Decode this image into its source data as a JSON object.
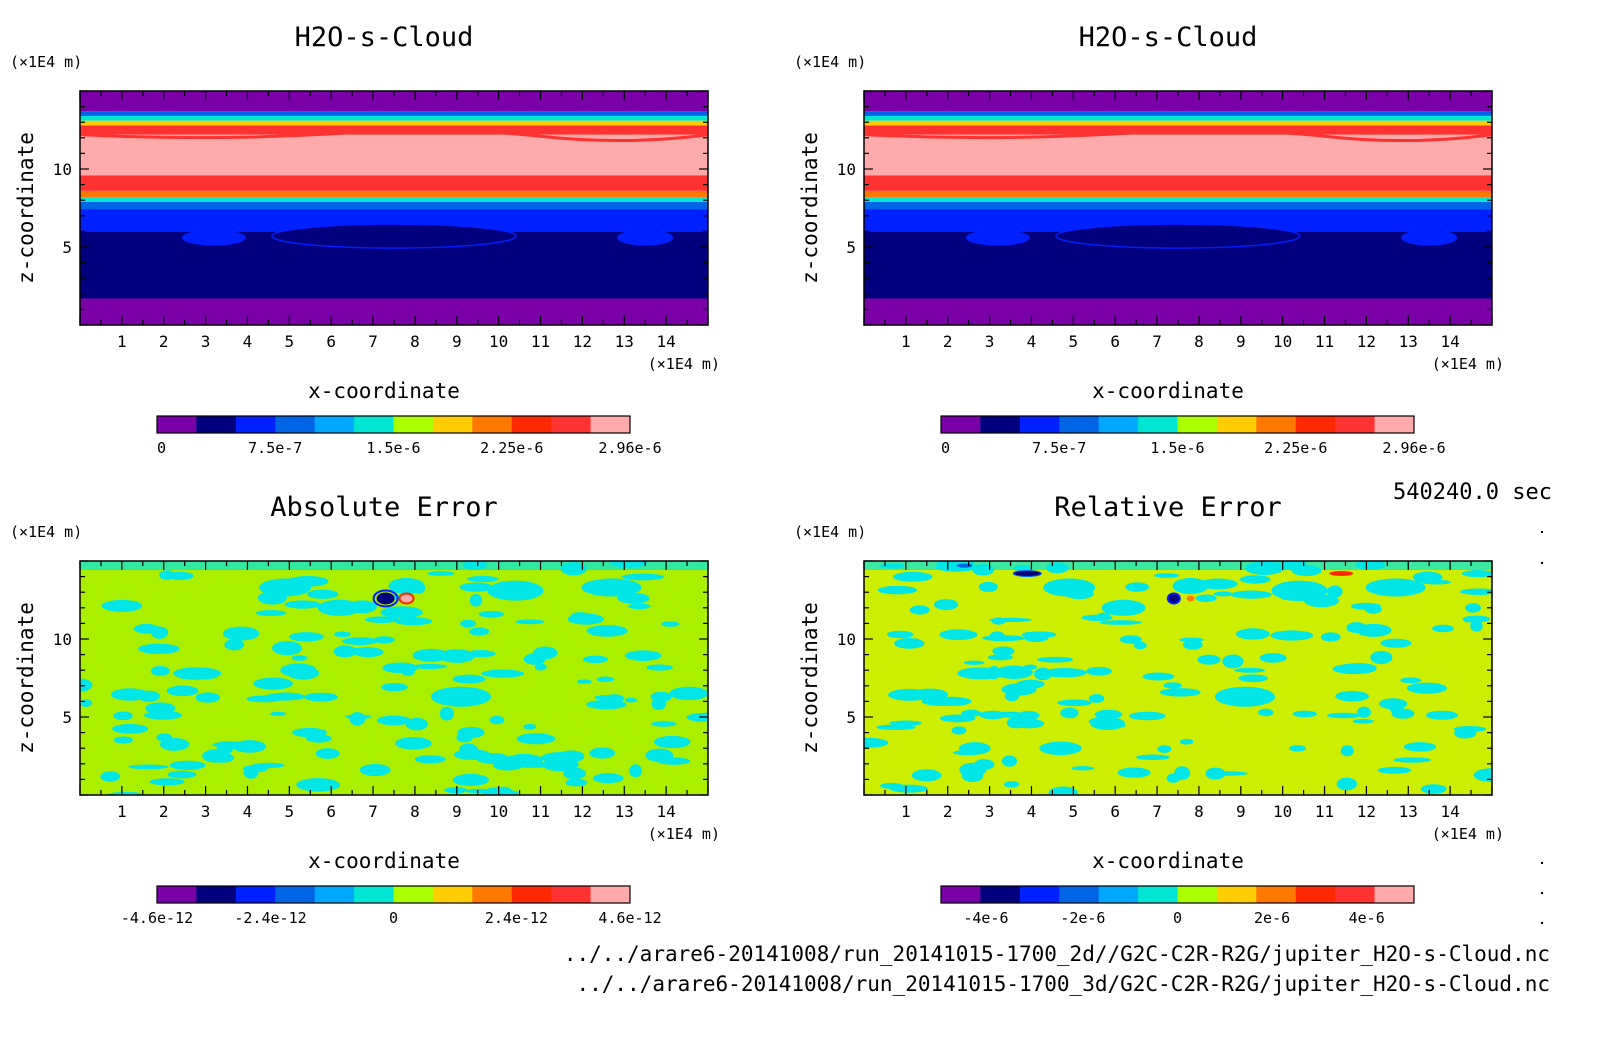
{
  "timestamp": "540240.0 sec",
  "files": [
    "../../arare6-20141008/run_20141015-1700_2d//G2C-C2R-R2G/jupiter_H2O-s-Cloud.nc",
    "../../arare6-20141008/run_20141015-1700_3d/G2C-C2R-R2G/jupiter_H2O-s-Cloud.nc"
  ],
  "palette": [
    "#7a00a8",
    "#00007f",
    "#0020ff",
    "#0064e6",
    "#00a8ff",
    "#00e6d2",
    "#aaff00",
    "#ffcc00",
    "#ff7800",
    "#ff2800",
    "#ff3232",
    "#ffaaaa"
  ],
  "chart_data": [
    {
      "type": "heatmap",
      "title": "H2O-s-Cloud",
      "xlabel": "x-coordinate",
      "ylabel": "z-coordinate",
      "x_unit": "(×1E4 m)",
      "y_unit": "(×1E4 m)",
      "xlim": [
        0,
        15
      ],
      "ylim": [
        0,
        15
      ],
      "xticks": [
        "1",
        "2",
        "3",
        "4",
        "5",
        "6",
        "7",
        "8",
        "9",
        "10",
        "11",
        "12",
        "13",
        "14"
      ],
      "yticks": [
        "5",
        "10"
      ],
      "colorbar_labels": [
        "0",
        "7.5e-7",
        "1.5e-6",
        "2.25e-6",
        "2.96e-6"
      ],
      "colorbar_range": [
        0,
        2.96e-06
      ],
      "layers_z_bottom_to_top": [
        {
          "z0": 0,
          "z1": 1.7,
          "color_index": 0
        },
        {
          "z0": 1.7,
          "z1": 6.0,
          "color_index": 1
        },
        {
          "z0": 6.0,
          "z1": 7.4,
          "color_index": 2
        },
        {
          "z0": 7.4,
          "z1": 7.9,
          "color_index": 3
        },
        {
          "z0": 7.9,
          "z1": 8.2,
          "color_index": 5
        },
        {
          "z0": 8.2,
          "z1": 8.6,
          "color_index": 8
        },
        {
          "z0": 8.6,
          "z1": 9.6,
          "color_index": 10
        },
        {
          "z0": 9.6,
          "z1": 12.2,
          "color_index": 11
        },
        {
          "z0": 12.2,
          "z1": 12.8,
          "color_index": 10
        },
        {
          "z0": 12.8,
          "z1": 13.1,
          "color_index": 7
        },
        {
          "z0": 13.1,
          "z1": 13.4,
          "color_index": 5
        },
        {
          "z0": 13.4,
          "z1": 13.7,
          "color_index": 3
        },
        {
          "z0": 13.7,
          "z1": 15,
          "color_index": 0
        }
      ]
    },
    {
      "type": "heatmap",
      "title": "H2O-s-Cloud",
      "xlabel": "x-coordinate",
      "ylabel": "z-coordinate",
      "x_unit": "(×1E4 m)",
      "y_unit": "(×1E4 m)",
      "xlim": [
        0,
        15
      ],
      "ylim": [
        0,
        15
      ],
      "xticks": [
        "1",
        "2",
        "3",
        "4",
        "5",
        "6",
        "7",
        "8",
        "9",
        "10",
        "11",
        "12",
        "13",
        "14"
      ],
      "yticks": [
        "5",
        "10"
      ],
      "colorbar_labels": [
        "0",
        "7.5e-7",
        "1.5e-6",
        "2.25e-6",
        "2.96e-6"
      ],
      "colorbar_range": [
        0,
        2.96e-06
      ],
      "layers_z_bottom_to_top": "same as panel 1"
    },
    {
      "type": "heatmap",
      "title": "Absolute Error",
      "xlabel": "x-coordinate",
      "ylabel": "z-coordinate",
      "x_unit": "(×1E4 m)",
      "y_unit": "(×1E4 m)",
      "xlim": [
        0,
        15
      ],
      "ylim": [
        0,
        15
      ],
      "xticks": [
        "1",
        "2",
        "3",
        "4",
        "5",
        "6",
        "7",
        "8",
        "9",
        "10",
        "11",
        "12",
        "13",
        "14"
      ],
      "yticks": [
        "5",
        "10"
      ],
      "colorbar_labels": [
        "-4.6e-12",
        "-2.4e-12",
        "0",
        "2.4e-12",
        "4.6e-12"
      ],
      "colorbar_range": [
        -4.6e-12,
        4.6e-12
      ],
      "background_color": "#aaee00",
      "blob_color": "#00e6e6"
    },
    {
      "type": "heatmap",
      "title": "Relative Error",
      "xlabel": "x-coordinate",
      "ylabel": "z-coordinate",
      "x_unit": "(×1E4 m)",
      "y_unit": "(×1E4 m)",
      "xlim": [
        0,
        15
      ],
      "ylim": [
        0,
        15
      ],
      "xticks": [
        "1",
        "2",
        "3",
        "4",
        "5",
        "6",
        "7",
        "8",
        "9",
        "10",
        "11",
        "12",
        "13",
        "14"
      ],
      "yticks": [
        "5",
        "10"
      ],
      "colorbar_labels": [
        "-4e-6",
        "-2e-6",
        "0",
        "2e-6",
        "4e-6"
      ],
      "colorbar_range": [
        -5e-06,
        5e-06
      ],
      "background_color": "#ccee00",
      "blob_color": "#00e6e6"
    }
  ]
}
